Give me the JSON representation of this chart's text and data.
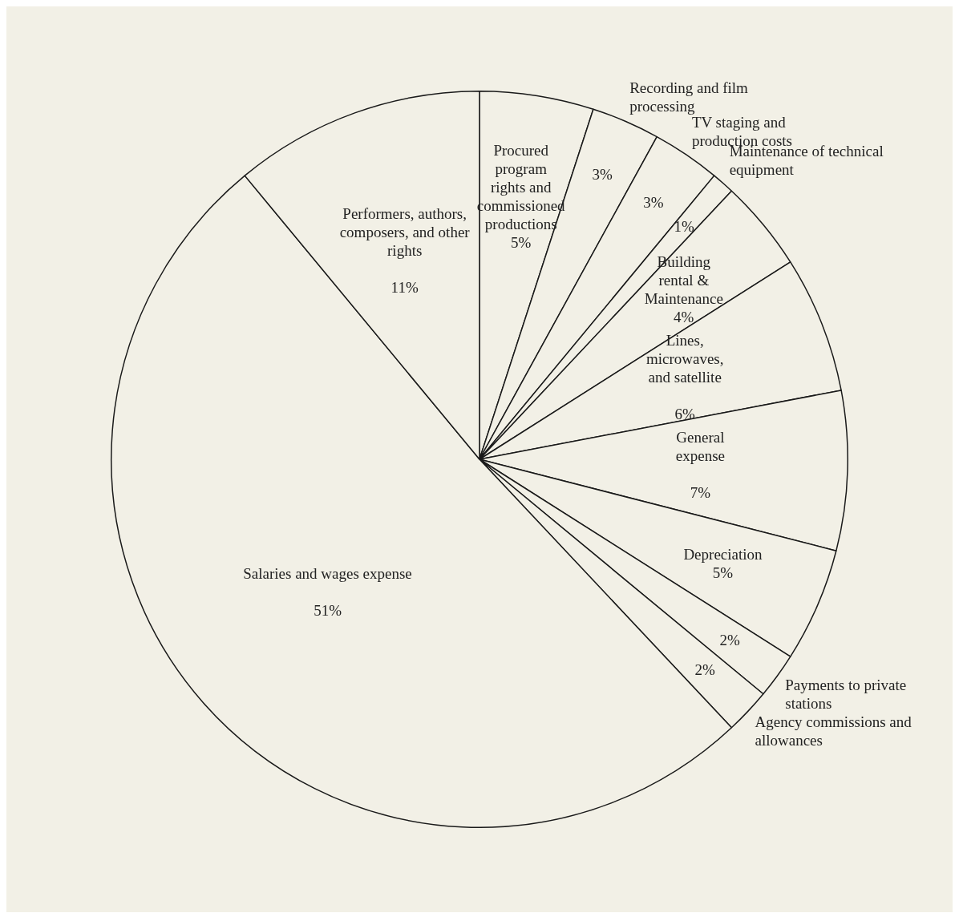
{
  "chart_data": {
    "type": "pie",
    "categories": [
      "Procured program rights and commissioned productions",
      "Recording and film processing",
      "TV staging and production costs",
      "Maintenance of technical equipment",
      "Building rental & Maintenance",
      "Lines, microwaves, and satellite",
      "General expense",
      "Depreciation",
      "Payments to private stations",
      "Agency commissions and allowances",
      "Salaries and wages expense",
      "Performers, authors, composers, and other rights"
    ],
    "values": [
      5,
      3,
      3,
      1,
      4,
      6,
      7,
      5,
      2,
      2,
      51,
      11
    ],
    "value_labels": [
      "5%",
      "3%",
      "3%",
      "1%",
      "4%",
      "6%",
      "7%",
      "5%",
      "2%",
      "2%",
      "51%",
      "11%"
    ],
    "colors": [
      "#f2f0e6",
      "#f2f0e6",
      "#f2f0e6",
      "#f2f0e6",
      "#f2f0e6",
      "#f2f0e6",
      "#f2f0e6",
      "#f2f0e6",
      "#f2f0e6",
      "#f2f0e6",
      "#f2f0e6",
      "#f2f0e6"
    ]
  }
}
